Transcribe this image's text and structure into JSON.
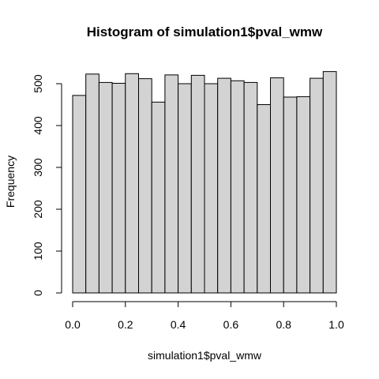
{
  "chart_data": {
    "type": "bar",
    "title": "Histogram of simulation1$pval_wmw",
    "xlabel": "simulation1$pval_wmw",
    "ylabel": "Frequency",
    "bin_edges": [
      0.0,
      0.05,
      0.1,
      0.15,
      0.2,
      0.25,
      0.3,
      0.35,
      0.4,
      0.45,
      0.5,
      0.55,
      0.6,
      0.65,
      0.7,
      0.75,
      0.8,
      0.85,
      0.9,
      0.95,
      1.0
    ],
    "values": [
      472,
      523,
      503,
      501,
      524,
      512,
      456,
      521,
      500,
      520,
      500,
      513,
      507,
      503,
      450,
      514,
      468,
      469,
      513,
      529
    ],
    "xlim": [
      0,
      1
    ],
    "ylim": [
      0,
      529
    ],
    "x_ticks": [
      0.0,
      0.2,
      0.4,
      0.6,
      0.8,
      1.0
    ],
    "x_tick_labels": [
      "0.0",
      "0.2",
      "0.4",
      "0.6",
      "0.8",
      "1.0"
    ],
    "y_ticks": [
      0,
      100,
      200,
      300,
      400,
      500
    ],
    "y_tick_labels": [
      "0",
      "100",
      "200",
      "300",
      "400",
      "500"
    ],
    "bar_color": "#d3d3d3",
    "edge_color": "#000000",
    "grid": false,
    "legend": "none"
  }
}
